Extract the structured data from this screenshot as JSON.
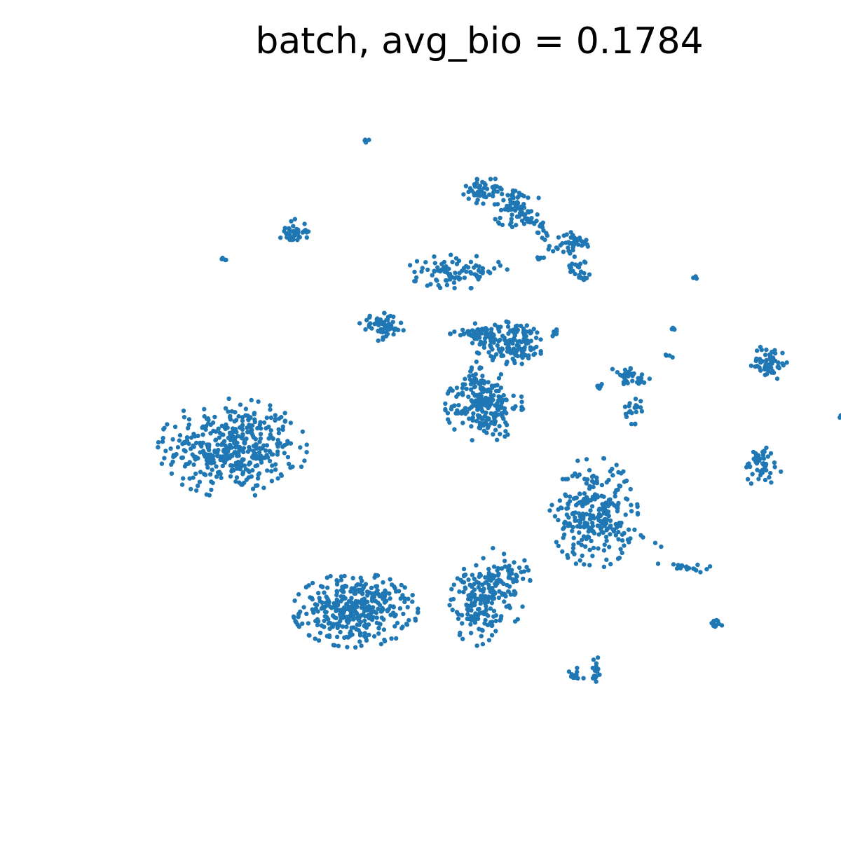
{
  "chart_data": {
    "type": "scatter",
    "title": "batch, avg_bio = 0.1784",
    "xlabel": "",
    "ylabel": "",
    "axes_visible": false,
    "grid": false,
    "legend": "none",
    "xlim": [
      0,
      100
    ],
    "ylim": [
      0,
      100
    ],
    "point_color": "#1f77b4",
    "series": [
      {
        "clusters": [
          {
            "cx": 17.3,
            "cy": 45.9,
            "sx": 4.4,
            "sy": 3.2,
            "n": 420,
            "trail": []
          },
          {
            "cx": 34.0,
            "cy": 21.8,
            "sx": 3.7,
            "sy": 2.4,
            "n": 380,
            "trail": []
          },
          {
            "cx": 51.5,
            "cy": 52.1,
            "sx": 2.3,
            "sy": 2.3,
            "n": 200,
            "trail": [
              [
                49.7,
                57.7,
                26
              ],
              [
                50.5,
                60.1,
                14
              ]
            ]
          },
          {
            "cx": 55.8,
            "cy": 61.6,
            "sx": 2.1,
            "sy": 1.5,
            "n": 140,
            "trail": []
          },
          {
            "cx": 51.1,
            "cy": 62.9,
            "sx": 1.4,
            "sy": 0.7,
            "n": 40,
            "trail": [
              [
                46.3,
                63.0,
                8
              ],
              [
                49.7,
                62.8,
                12
              ]
            ]
          },
          {
            "cx": 47.8,
            "cy": 72.1,
            "sx": 3.0,
            "sy": 1.1,
            "n": 90,
            "trail": []
          },
          {
            "cx": 25.6,
            "cy": 78.1,
            "sx": 0.9,
            "sy": 0.8,
            "n": 40,
            "trail": []
          },
          {
            "cx": 37.7,
            "cy": 63.9,
            "sx": 1.4,
            "sy": 0.9,
            "n": 60,
            "trail": [
              [
                40.3,
                63.3,
                4
              ]
            ]
          },
          {
            "cx": 66.4,
            "cy": 36.3,
            "sx": 2.6,
            "sy": 3.6,
            "n": 270,
            "trail": [
              [
                71.3,
                32.0,
                10
              ],
              [
                75.5,
                31.2,
                8
              ]
            ]
          },
          {
            "cx": 50.3,
            "cy": 22.5,
            "sx": 1.6,
            "sy": 2.6,
            "n": 110,
            "trail": [
              [
                48.6,
                26.7,
                12
              ]
            ]
          },
          {
            "cx": 54.1,
            "cy": 25.5,
            "sx": 1.6,
            "sy": 2.6,
            "n": 110,
            "trail": []
          },
          {
            "cx": 51.3,
            "cy": 84.3,
            "sx": 1.2,
            "sy": 0.9,
            "n": 50,
            "trail": []
          },
          {
            "cx": 55.8,
            "cy": 81.6,
            "sx": 1.5,
            "sy": 1.5,
            "n": 70,
            "trail": [
              [
                60.0,
                77.9,
                20
              ],
              [
                61.1,
                75.0,
                12
              ]
            ]
          },
          {
            "cx": 63.8,
            "cy": 76.4,
            "sx": 1.2,
            "sy": 0.7,
            "n": 40,
            "trail": []
          },
          {
            "cx": 64.3,
            "cy": 72.6,
            "sx": 0.8,
            "sy": 0.8,
            "n": 25,
            "trail": []
          },
          {
            "cx": 90.3,
            "cy": 58.6,
            "sx": 1.1,
            "sy": 1.2,
            "n": 60,
            "trail": []
          },
          {
            "cx": 89.2,
            "cy": 43.4,
            "sx": 1.2,
            "sy": 1.4,
            "n": 50,
            "trail": []
          },
          {
            "cx": 72.1,
            "cy": 56.0,
            "sx": 0.9,
            "sy": 0.4,
            "n": 20,
            "trail": []
          },
          {
            "cx": 71.8,
            "cy": 51.7,
            "sx": 0.5,
            "sy": 1.0,
            "n": 20,
            "trail": []
          },
          {
            "cx": 66.6,
            "cy": 12.8,
            "sx": 0.3,
            "sy": 1.0,
            "n": 18,
            "trail": []
          },
          {
            "cx": 63.8,
            "cy": 12.1,
            "sx": 0.6,
            "sy": 0.5,
            "n": 12,
            "trail": []
          },
          {
            "cx": 82.9,
            "cy": 19.6,
            "sx": 0.4,
            "sy": 0.4,
            "n": 12,
            "trail": []
          },
          {
            "cx": 78.5,
            "cy": 28.1,
            "sx": 2.2,
            "sy": 0.4,
            "n": 20,
            "trail": []
          },
          {
            "cx": 61.1,
            "cy": 63.1,
            "sx": 0.4,
            "sy": 0.3,
            "n": 6,
            "trail": []
          },
          {
            "cx": 67.3,
            "cy": 54.8,
            "sx": 0.6,
            "sy": 0.3,
            "n": 8,
            "trail": []
          },
          {
            "cx": 70.8,
            "cy": 57.1,
            "sx": 1.0,
            "sy": 0.4,
            "n": 14,
            "trail": []
          },
          {
            "cx": 77.3,
            "cy": 63.6,
            "sx": 0.4,
            "sy": 0.2,
            "n": 5,
            "trail": []
          },
          {
            "cx": 35.4,
            "cy": 91.6,
            "sx": 0.2,
            "sy": 0.2,
            "n": 4,
            "trail": []
          },
          {
            "cx": 16.1,
            "cy": 74.2,
            "sx": 0.2,
            "sy": 0.2,
            "n": 4,
            "trail": []
          },
          {
            "cx": 59.3,
            "cy": 74.0,
            "sx": 0.3,
            "sy": 0.2,
            "n": 5,
            "trail": []
          },
          {
            "cx": 76.5,
            "cy": 59.6,
            "sx": 0.3,
            "sy": 0.2,
            "n": 4,
            "trail": []
          },
          {
            "cx": 80.3,
            "cy": 71.4,
            "sx": 0.2,
            "sy": 0.2,
            "n": 3,
            "trail": []
          },
          {
            "cx": 99.9,
            "cy": 50.5,
            "sx": 0.1,
            "sy": 0.2,
            "n": 3,
            "trail": []
          }
        ]
      }
    ]
  }
}
